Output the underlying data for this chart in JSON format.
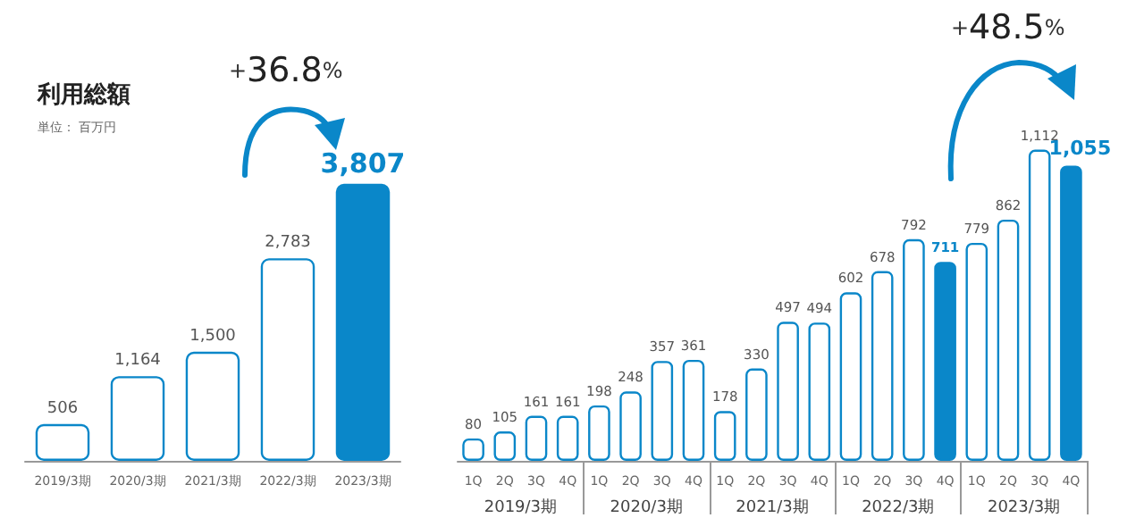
{
  "chart_data": [
    {
      "type": "bar",
      "title": "利用総額",
      "subtitle": "単位： 百万円",
      "categories": [
        "2019/3期",
        "2020/3期",
        "2021/3期",
        "2022/3期",
        "2023/3期"
      ],
      "values": [
        506,
        1164,
        1500,
        2783,
        3807
      ],
      "color": "#0a87c9",
      "colors": [
        "#ffffff",
        "#ffffff",
        "#ffffff",
        "#ffffff",
        "#0a87c9"
      ],
      "value_labels": [
        "506",
        "1,164",
        "1,500",
        "2,783",
        "3,807"
      ],
      "annotations": [
        "+36.8%"
      ]
    },
    {
      "type": "bar",
      "categories": [
        "1Q",
        "2Q",
        "3Q",
        "4Q",
        "1Q",
        "2Q",
        "3Q",
        "4Q",
        "1Q",
        "2Q",
        "3Q",
        "4Q",
        "1Q",
        "2Q",
        "3Q",
        "4Q",
        "1Q",
        "2Q",
        "3Q",
        "4Q"
      ],
      "values": [
        80,
        105,
        161,
        161,
        198,
        248,
        357,
        361,
        178,
        330,
        497,
        494,
        602,
        678,
        792,
        711,
        779,
        862,
        1112,
        1055
      ],
      "color": "#0a87c9",
      "colors": [
        "#ffffff",
        "#ffffff",
        "#ffffff",
        "#ffffff",
        "#ffffff",
        "#ffffff",
        "#ffffff",
        "#ffffff",
        "#ffffff",
        "#ffffff",
        "#ffffff",
        "#ffffff",
        "#ffffff",
        "#ffffff",
        "#ffffff",
        "#0a87c9",
        "#ffffff",
        "#ffffff",
        "#ffffff",
        "#0a87c9"
      ],
      "value_labels": [
        "80",
        "105",
        "161",
        "161",
        "198",
        "248",
        "357",
        "361",
        "178",
        "330",
        "497",
        "494",
        "602",
        "678",
        "792",
        "711",
        "779",
        "862",
        "1,112",
        "1,055"
      ],
      "annotations": [
        "+48.5%",
        "2019/3期",
        "2020/3期",
        "2021/3期",
        "2022/3期",
        "2023/3期"
      ]
    }
  ]
}
